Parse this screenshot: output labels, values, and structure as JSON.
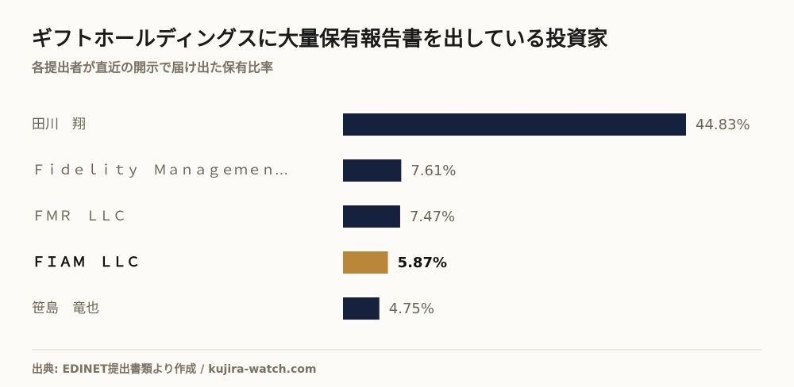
{
  "chart_data": {
    "type": "hbar",
    "title": "ギフトホールディングスに大量保有報告書を出している投資家",
    "subtitle": "各提出者が直近の開示で届け出た保有比率",
    "categories": [
      "田川　翔",
      "Ｆｉｄｅｌｉｔｙ　Ｍａｎａｇｅｍｅｎ…",
      "ＦＭＲ　ＬＬＣ",
      "ＦＩＡＭ　ＬＬＣ",
      "笹島　竜也"
    ],
    "values": [
      44.83,
      7.61,
      7.47,
      5.87,
      4.75
    ],
    "value_labels": [
      "44.83%",
      "7.61%",
      "7.47%",
      "5.87%",
      "4.75%"
    ],
    "colors": [
      "#16213e",
      "#16213e",
      "#16213e",
      "#b8873a",
      "#16213e"
    ],
    "source": "出典: EDINET提出書類より作成 / kujira-watch.com"
  }
}
